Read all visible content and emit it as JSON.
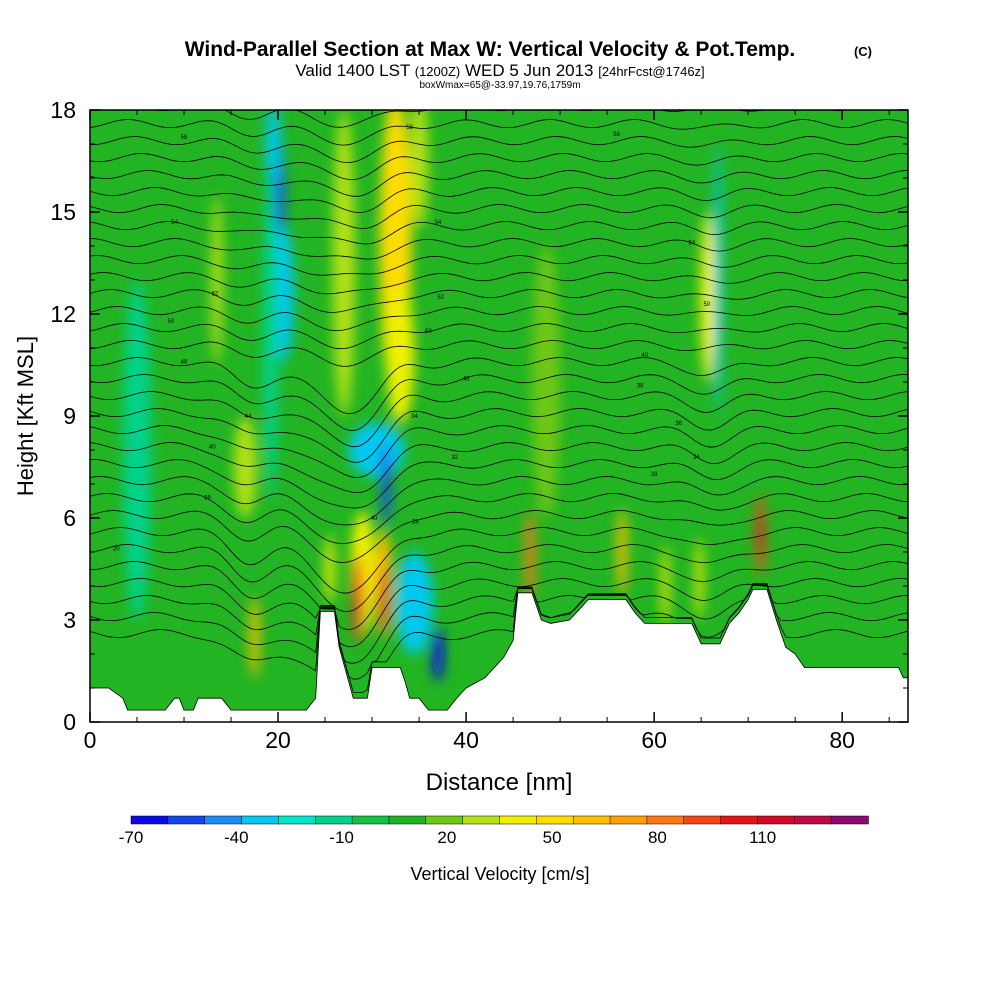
{
  "chart_data": {
    "type": "heatmap",
    "title": "Wind-Parallel Section at Max W: Vertical Velocity & Pot.Temp.",
    "title_mark": "(C)",
    "subtitle": {
      "valid_prefix": "Valid 1400 LST",
      "utc": "(1200Z)",
      "date": "WED 5 Jun 2013",
      "forecast": "[24hrFcst@1746z]"
    },
    "note": "boxWmax=65@-33.97,19.76,1759m",
    "xlabel": "Distance [nm]",
    "ylabel": "Height [Kft MSL]",
    "xlim": [
      0,
      87
    ],
    "ylim": [
      0,
      18
    ],
    "x_ticks": [
      0,
      20,
      40,
      60,
      80
    ],
    "x_tick_labels": [
      "0",
      "20",
      "40",
      "60",
      "80"
    ],
    "y_ticks": [
      0,
      3,
      6,
      9,
      12,
      15,
      18
    ],
    "y_tick_labels": [
      "0",
      "3",
      "6",
      "9",
      "12",
      "15",
      "18"
    ],
    "background_color": "#22b422",
    "colorbar": {
      "label": "Vertical Velocity [cm/s]",
      "tick_values": [
        -70,
        -40,
        -10,
        20,
        50,
        80,
        110
      ],
      "tick_labels": [
        "-70",
        "-40",
        "-10",
        "20",
        "50",
        "80",
        "110"
      ],
      "bounds": [
        -70,
        140
      ],
      "colors": [
        "#0a0ae6",
        "#1446f0",
        "#1e8cf5",
        "#00c8f0",
        "#00e6c8",
        "#00d28c",
        "#14c346",
        "#23b423",
        "#6ec814",
        "#b4e114",
        "#f0f000",
        "#ffdc00",
        "#ffbe00",
        "#ffa000",
        "#ff7814",
        "#f54614",
        "#e61414",
        "#d20a28",
        "#be0a46",
        "#8c0a6e"
      ]
    },
    "velocity_cells": [
      {
        "x": 20,
        "y": 14.9,
        "wx": 0.7,
        "wy": 2.6,
        "v": -55
      },
      {
        "x": 20.5,
        "y": 12.6,
        "wx": 1.2,
        "wy": 2.0,
        "v": -30
      },
      {
        "x": 19.2,
        "y": 11.5,
        "wx": 0.8,
        "wy": 5.0,
        "v": -12
      },
      {
        "x": 19.5,
        "y": 17.0,
        "wx": 0.8,
        "wy": 1.2,
        "v": -30
      },
      {
        "x": 13.5,
        "y": 13.0,
        "wx": 0.6,
        "wy": 2.5,
        "v": 25
      },
      {
        "x": 16.5,
        "y": 7.5,
        "wx": 1.2,
        "wy": 1.5,
        "v": 25
      },
      {
        "x": 27,
        "y": 13.5,
        "wx": 1.2,
        "wy": 4.5,
        "v": 25
      },
      {
        "x": 32.5,
        "y": 14.0,
        "wx": 1.7,
        "wy": 4.5,
        "v": 50
      },
      {
        "x": 33.0,
        "y": 10.8,
        "wx": 1.5,
        "wy": 2.0,
        "v": 40
      },
      {
        "x": 35.0,
        "y": 16.5,
        "wx": 1.0,
        "wy": 2.0,
        "v": 30
      },
      {
        "x": 30.5,
        "y": 8.0,
        "wx": 3.0,
        "wy": 0.8,
        "v": -30
      },
      {
        "x": 31.5,
        "y": 7.0,
        "wx": 0.5,
        "wy": 1.2,
        "v": -50
      },
      {
        "x": 29,
        "y": 4.4,
        "wx": 1.3,
        "wy": 1.8,
        "v": 40
      },
      {
        "x": 28.5,
        "y": 3.6,
        "wx": 0.6,
        "wy": 1.3,
        "v": 90
      },
      {
        "x": 28.6,
        "y": 3.2,
        "wx": 0.4,
        "wy": 0.8,
        "v": 115
      },
      {
        "x": 31.2,
        "y": 4.1,
        "wx": 0.9,
        "wy": 1.6,
        "v": 60
      },
      {
        "x": 31.2,
        "y": 3.6,
        "wx": 0.45,
        "wy": 1.0,
        "v": 115
      },
      {
        "x": 34.5,
        "y": 3.5,
        "wx": 2.0,
        "wy": 1.5,
        "v": -30
      },
      {
        "x": 37,
        "y": 2.0,
        "wx": 0.6,
        "wy": 0.8,
        "v": -65
      },
      {
        "x": 17.5,
        "y": 2.5,
        "wx": 0.5,
        "wy": 1.2,
        "v": 60
      },
      {
        "x": 25.5,
        "y": 4.5,
        "wx": 0.5,
        "wy": 1.0,
        "v": 40
      },
      {
        "x": 46.8,
        "y": 4.9,
        "wx": 0.5,
        "wy": 1.3,
        "v": 80
      },
      {
        "x": 56.6,
        "y": 5.0,
        "wx": 0.5,
        "wy": 1.3,
        "v": 60
      },
      {
        "x": 61.2,
        "y": 4.0,
        "wx": 0.4,
        "wy": 1.2,
        "v": 40
      },
      {
        "x": 64.8,
        "y": 4.2,
        "wx": 0.4,
        "wy": 1.2,
        "v": 40
      },
      {
        "x": 65.7,
        "y": 12.5,
        "wx": 0.8,
        "wy": 2.5,
        "v": 40
      },
      {
        "x": 66.8,
        "y": 13.0,
        "wx": 0.4,
        "wy": 4.0,
        "v": -30
      },
      {
        "x": 71.3,
        "y": 5.5,
        "wx": 0.5,
        "wy": 1.2,
        "v": 95
      },
      {
        "x": 71.3,
        "y": 5.5,
        "wx": 0.3,
        "wy": 0.6,
        "v": 115
      },
      {
        "x": 48.5,
        "y": 10.0,
        "wx": 1.5,
        "wy": 4.0,
        "v": 15
      },
      {
        "x": 5,
        "y": 8.0,
        "wx": 1.5,
        "wy": 5.0,
        "v": -10
      }
    ],
    "terrain": [
      [
        0,
        1.0
      ],
      [
        2,
        1.0
      ],
      [
        3.5,
        0.7
      ],
      [
        4,
        0.35
      ],
      [
        8,
        0.35
      ],
      [
        9,
        0.7
      ],
      [
        9.5,
        0.7
      ],
      [
        10,
        0.35
      ],
      [
        11,
        0.35
      ],
      [
        11.5,
        0.7
      ],
      [
        14,
        0.7
      ],
      [
        15,
        0.35
      ],
      [
        23,
        0.35
      ],
      [
        24,
        0.7
      ],
      [
        24.5,
        3.25
      ],
      [
        26,
        3.25
      ],
      [
        26.5,
        2.2
      ],
      [
        27.5,
        1.2
      ],
      [
        28,
        0.7
      ],
      [
        29.5,
        0.7
      ],
      [
        30,
        1.6
      ],
      [
        33,
        1.6
      ],
      [
        33.5,
        1.2
      ],
      [
        34,
        0.7
      ],
      [
        35,
        0.7
      ],
      [
        36,
        0.35
      ],
      [
        38,
        0.35
      ],
      [
        39,
        0.7
      ],
      [
        40,
        1.0
      ],
      [
        42,
        1.3
      ],
      [
        44,
        1.9
      ],
      [
        45,
        2.4
      ],
      [
        45.5,
        3.8
      ],
      [
        47,
        3.8
      ],
      [
        48,
        3.0
      ],
      [
        49,
        2.9
      ],
      [
        51,
        3.0
      ],
      [
        52,
        3.3
      ],
      [
        53,
        3.6
      ],
      [
        57,
        3.6
      ],
      [
        58,
        3.2
      ],
      [
        59,
        2.9
      ],
      [
        64,
        2.9
      ],
      [
        65,
        2.3
      ],
      [
        67,
        2.3
      ],
      [
        68,
        2.9
      ],
      [
        69,
        3.2
      ],
      [
        70,
        3.6
      ],
      [
        70.5,
        3.9
      ],
      [
        72,
        3.9
      ],
      [
        73,
        3.0
      ],
      [
        74,
        2.2
      ],
      [
        75,
        2.0
      ],
      [
        76,
        1.6
      ],
      [
        86,
        1.6
      ],
      [
        86.5,
        1.3
      ],
      [
        87,
        1.3
      ]
    ],
    "isentrope_labels": [
      {
        "x": 10,
        "y": 17.2,
        "text": "58"
      },
      {
        "x": 34,
        "y": 17.5,
        "text": "58"
      },
      {
        "x": 56,
        "y": 17.3,
        "text": "58"
      },
      {
        "x": 9,
        "y": 14.7,
        "text": "54"
      },
      {
        "x": 37,
        "y": 14.7,
        "text": "54"
      },
      {
        "x": 64,
        "y": 14.1,
        "text": "54"
      },
      {
        "x": 13.3,
        "y": 12.6,
        "text": "52"
      },
      {
        "x": 37.3,
        "y": 12.5,
        "text": "52"
      },
      {
        "x": 65.6,
        "y": 12.3,
        "text": "50"
      },
      {
        "x": 8.6,
        "y": 11.8,
        "text": "50"
      },
      {
        "x": 36,
        "y": 11.5,
        "text": "50"
      },
      {
        "x": 59,
        "y": 10.8,
        "text": "40"
      },
      {
        "x": 10,
        "y": 10.6,
        "text": "48"
      },
      {
        "x": 40,
        "y": 10.1,
        "text": "46"
      },
      {
        "x": 58.5,
        "y": 9.9,
        "text": "38"
      },
      {
        "x": 16.8,
        "y": 9.0,
        "text": "44"
      },
      {
        "x": 34.5,
        "y": 9.0,
        "text": "34"
      },
      {
        "x": 62.6,
        "y": 8.8,
        "text": "36"
      },
      {
        "x": 13,
        "y": 8.1,
        "text": "40"
      },
      {
        "x": 38.8,
        "y": 7.8,
        "text": "32"
      },
      {
        "x": 64.5,
        "y": 7.8,
        "text": "34"
      },
      {
        "x": 60,
        "y": 7.3,
        "text": "28"
      },
      {
        "x": 12.5,
        "y": 6.6,
        "text": "38"
      },
      {
        "x": 30.2,
        "y": 6.0,
        "text": "40"
      },
      {
        "x": 34.6,
        "y": 5.9,
        "text": "28"
      },
      {
        "x": 2.8,
        "y": 5.1,
        "text": "20"
      }
    ]
  }
}
